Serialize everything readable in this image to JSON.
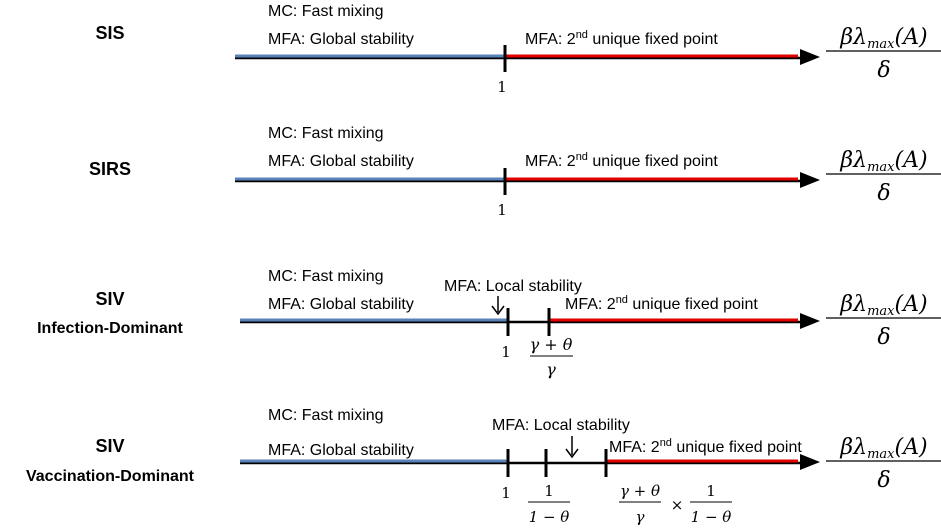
{
  "colors": {
    "stable": "#5a82b8",
    "unstable": "#e00000",
    "axis": "#000000"
  },
  "axis_label": {
    "num_beta": "β",
    "num_lambda": "λ",
    "num_sub": "max",
    "num_arg": "(A)",
    "den": "δ"
  },
  "labels": {
    "mc_fast": "MC: Fast mixing",
    "mfa_global": "MFA: Global stability",
    "mfa_local": "MFA: Local stability",
    "mfa_second_pre": "MFA: 2",
    "mfa_second_sup": "nd",
    "mfa_second_post": " unique fixed point"
  },
  "ticks": {
    "one": "1",
    "gt_num": "γ + θ",
    "gt_den": "γ",
    "inv_num": "1",
    "inv_den": "1 − θ",
    "times": "×"
  },
  "models": [
    {
      "name": "SIS",
      "subtitle": ""
    },
    {
      "name": "SIRS",
      "subtitle": ""
    },
    {
      "name": "SIV",
      "subtitle": "Infection-Dominant"
    },
    {
      "name": "SIV",
      "subtitle": "Vaccination-Dominant"
    }
  ]
}
